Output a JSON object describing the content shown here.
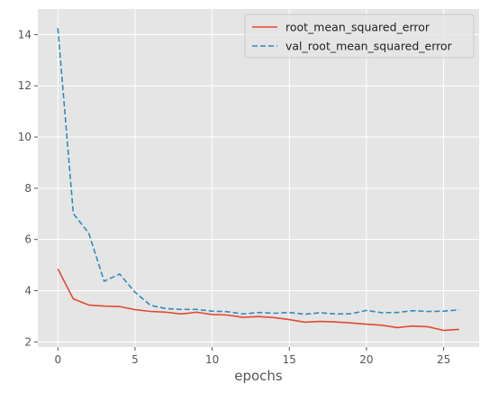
{
  "chart_data": {
    "type": "line",
    "xlabel": "epochs",
    "ylabel": "",
    "title": "",
    "xlim": [
      -1.3,
      27.3
    ],
    "ylim": [
      1.8,
      15.0
    ],
    "xticks": [
      0,
      5,
      10,
      15,
      20,
      25
    ],
    "yticks": [
      2,
      4,
      6,
      8,
      10,
      12,
      14
    ],
    "grid": true,
    "legend_position": "top-right",
    "x": [
      0,
      1,
      2,
      3,
      4,
      5,
      6,
      7,
      8,
      9,
      10,
      11,
      12,
      13,
      14,
      15,
      16,
      17,
      18,
      19,
      20,
      21,
      22,
      23,
      24,
      25,
      26
    ],
    "series": [
      {
        "name": "root_mean_squared_error",
        "color": "#E24A33",
        "style": "solid",
        "values": [
          4.85,
          3.68,
          3.44,
          3.4,
          3.38,
          3.26,
          3.19,
          3.16,
          3.09,
          3.16,
          3.07,
          3.05,
          2.96,
          2.99,
          2.95,
          2.87,
          2.77,
          2.8,
          2.78,
          2.74,
          2.69,
          2.65,
          2.56,
          2.62,
          2.59,
          2.45,
          2.49
        ]
      },
      {
        "name": "val_root_mean_squared_error",
        "color": "#348ABD",
        "style": "dashed",
        "values": [
          14.25,
          7.01,
          6.25,
          4.37,
          4.65,
          3.94,
          3.43,
          3.3,
          3.27,
          3.27,
          3.2,
          3.18,
          3.09,
          3.15,
          3.12,
          3.15,
          3.08,
          3.14,
          3.09,
          3.1,
          3.23,
          3.14,
          3.15,
          3.22,
          3.19,
          3.2,
          3.25
        ]
      }
    ]
  }
}
